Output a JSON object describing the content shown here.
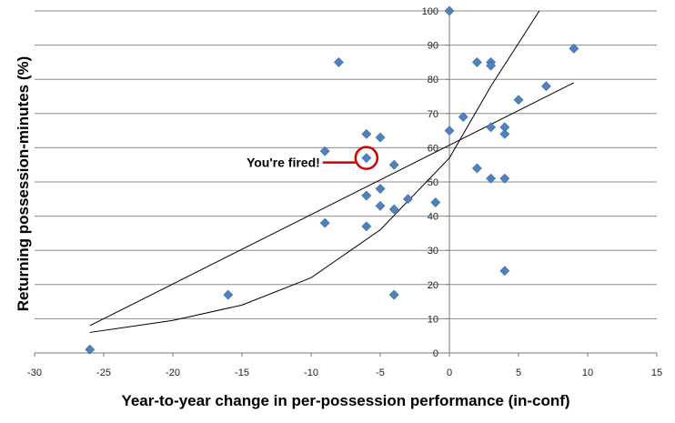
{
  "chart_data": {
    "type": "scatter",
    "title": "",
    "xlabel": "Year-to-year change in per-possession performance (in-conf)",
    "ylabel": "Returning possession-minutes (%)",
    "xlim": [
      -30,
      15
    ],
    "ylim": [
      0,
      100
    ],
    "xticks": [
      -30,
      -25,
      -20,
      -15,
      -10,
      -5,
      0,
      5,
      10,
      15
    ],
    "yticks": [
      0,
      10,
      20,
      30,
      40,
      50,
      60,
      70,
      80,
      90,
      100
    ],
    "grid": "horizontal",
    "marker_color": "#4F81BD",
    "points": [
      {
        "x": -26,
        "y": 1
      },
      {
        "x": -16,
        "y": 17
      },
      {
        "x": -9,
        "y": 38
      },
      {
        "x": -9,
        "y": 59
      },
      {
        "x": -8,
        "y": 85
      },
      {
        "x": -6,
        "y": 64
      },
      {
        "x": -6,
        "y": 57
      },
      {
        "x": -6,
        "y": 46
      },
      {
        "x": -6,
        "y": 37
      },
      {
        "x": -5,
        "y": 63
      },
      {
        "x": -5,
        "y": 48
      },
      {
        "x": -5,
        "y": 43
      },
      {
        "x": -4,
        "y": 55
      },
      {
        "x": -4,
        "y": 42
      },
      {
        "x": -4,
        "y": 17
      },
      {
        "x": -3,
        "y": 45
      },
      {
        "x": -1,
        "y": 44
      },
      {
        "x": 0,
        "y": 100
      },
      {
        "x": 0,
        "y": 65
      },
      {
        "x": 1,
        "y": 69
      },
      {
        "x": 2,
        "y": 85
      },
      {
        "x": 2,
        "y": 54
      },
      {
        "x": 3,
        "y": 85
      },
      {
        "x": 3,
        "y": 84
      },
      {
        "x": 3,
        "y": 66
      },
      {
        "x": 3,
        "y": 51
      },
      {
        "x": 4,
        "y": 66
      },
      {
        "x": 4,
        "y": 64
      },
      {
        "x": 4,
        "y": 51
      },
      {
        "x": 4,
        "y": 24
      },
      {
        "x": 5,
        "y": 74
      },
      {
        "x": 7,
        "y": 78
      },
      {
        "x": 9,
        "y": 89
      }
    ],
    "trendlines": [
      {
        "type": "linear",
        "points": [
          {
            "x": -26,
            "y": 8
          },
          {
            "x": 9,
            "y": 79
          }
        ]
      },
      {
        "type": "exponential",
        "points": [
          {
            "x": -26,
            "y": 6
          },
          {
            "x": -20,
            "y": 9.5
          },
          {
            "x": -15,
            "y": 14
          },
          {
            "x": -10,
            "y": 22
          },
          {
            "x": -5,
            "y": 36
          },
          {
            "x": 0,
            "y": 57
          },
          {
            "x": 3,
            "y": 78
          },
          {
            "x": 6.5,
            "y": 100
          }
        ]
      }
    ],
    "annotation": {
      "text": "You're fired!",
      "target": {
        "x": -6,
        "y": 57
      },
      "color": "#D00000"
    }
  }
}
